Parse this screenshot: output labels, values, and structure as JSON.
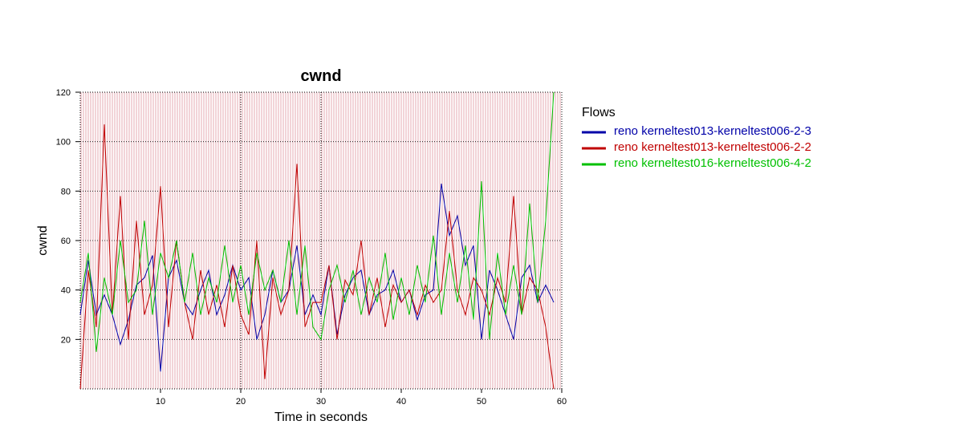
{
  "chart_data": {
    "type": "line",
    "title": "cwnd",
    "xlabel": "Time in seconds",
    "ylabel": "cwnd",
    "xlim": [
      0,
      60
    ],
    "ylim": [
      0,
      120
    ],
    "x_ticks": [
      10,
      20,
      30,
      40,
      50,
      60
    ],
    "y_ticks": [
      20,
      40,
      60,
      80,
      100,
      120
    ],
    "grid": "dotted at x=20 and x=30; dotted horizontal lines at y ticks",
    "background": "dense vertical pink stripes",
    "legend": {
      "title": "Flows",
      "placement": "right"
    },
    "series": [
      {
        "name": "reno kerneltest013-kerneltest006-2-3",
        "color": "#0000a8",
        "x": [
          0,
          1,
          2,
          3,
          4,
          5,
          6,
          7,
          8,
          9,
          10,
          11,
          12,
          13,
          14,
          15,
          16,
          17,
          18,
          19,
          20,
          21,
          22,
          23,
          24,
          25,
          26,
          27,
          28,
          29,
          30,
          31,
          32,
          33,
          34,
          35,
          36,
          37,
          38,
          39,
          40,
          41,
          42,
          43,
          44,
          45,
          46,
          47,
          48,
          49,
          50,
          51,
          52,
          53,
          54,
          55,
          56,
          57,
          58,
          59
        ],
        "values": [
          30,
          52,
          30,
          38,
          30,
          18,
          28,
          42,
          45,
          54,
          7,
          45,
          52,
          35,
          30,
          40,
          48,
          30,
          38,
          50,
          40,
          45,
          20,
          30,
          48,
          35,
          40,
          58,
          30,
          38,
          30,
          50,
          22,
          38,
          45,
          48,
          30,
          38,
          40,
          48,
          35,
          40,
          28,
          38,
          40,
          83,
          62,
          70,
          50,
          58,
          20,
          48,
          40,
          30,
          20,
          45,
          50,
          35,
          42,
          35
        ]
      },
      {
        "name": "reno kerneltest013-kerneltest006-2-2",
        "color": "#c00000",
        "x": [
          0,
          1,
          2,
          3,
          4,
          5,
          6,
          7,
          8,
          9,
          10,
          11,
          12,
          13,
          14,
          15,
          16,
          17,
          18,
          19,
          20,
          21,
          22,
          23,
          24,
          25,
          26,
          27,
          28,
          29,
          30,
          31,
          32,
          33,
          34,
          35,
          36,
          37,
          38,
          39,
          40,
          41,
          42,
          43,
          44,
          45,
          46,
          47,
          48,
          49,
          50,
          51,
          52,
          53,
          54,
          55,
          56,
          57,
          58,
          59
        ],
        "values": [
          0,
          48,
          25,
          107,
          30,
          78,
          20,
          68,
          30,
          42,
          82,
          25,
          60,
          35,
          20,
          48,
          30,
          42,
          25,
          50,
          30,
          22,
          60,
          4,
          45,
          30,
          40,
          91,
          25,
          35,
          35,
          50,
          20,
          44,
          38,
          60,
          30,
          45,
          25,
          42,
          35,
          40,
          30,
          42,
          35,
          40,
          72,
          40,
          30,
          45,
          40,
          30,
          45,
          35,
          78,
          30,
          45,
          40,
          25,
          0
        ]
      },
      {
        "name": "reno kerneltest016-kerneltest006-4-2",
        "color": "#00c000",
        "x": [
          0,
          1,
          2,
          3,
          4,
          5,
          6,
          7,
          8,
          9,
          10,
          11,
          12,
          13,
          14,
          15,
          16,
          17,
          18,
          19,
          20,
          21,
          22,
          23,
          24,
          25,
          26,
          27,
          28,
          29,
          30,
          31,
          32,
          33,
          34,
          35,
          36,
          37,
          38,
          39,
          40,
          41,
          42,
          43,
          44,
          45,
          46,
          47,
          48,
          49,
          50,
          51,
          52,
          53,
          54,
          55,
          56,
          57,
          58,
          59
        ],
        "values": [
          35,
          55,
          15,
          45,
          30,
          60,
          35,
          40,
          68,
          30,
          55,
          45,
          60,
          35,
          55,
          30,
          45,
          35,
          58,
          35,
          50,
          30,
          55,
          40,
          48,
          35,
          60,
          30,
          58,
          25,
          20,
          40,
          50,
          35,
          48,
          30,
          45,
          35,
          55,
          28,
          45,
          30,
          50,
          35,
          62,
          30,
          55,
          35,
          58,
          28,
          84,
          20,
          55,
          30,
          50,
          30,
          75,
          35,
          68,
          120
        ]
      }
    ]
  }
}
